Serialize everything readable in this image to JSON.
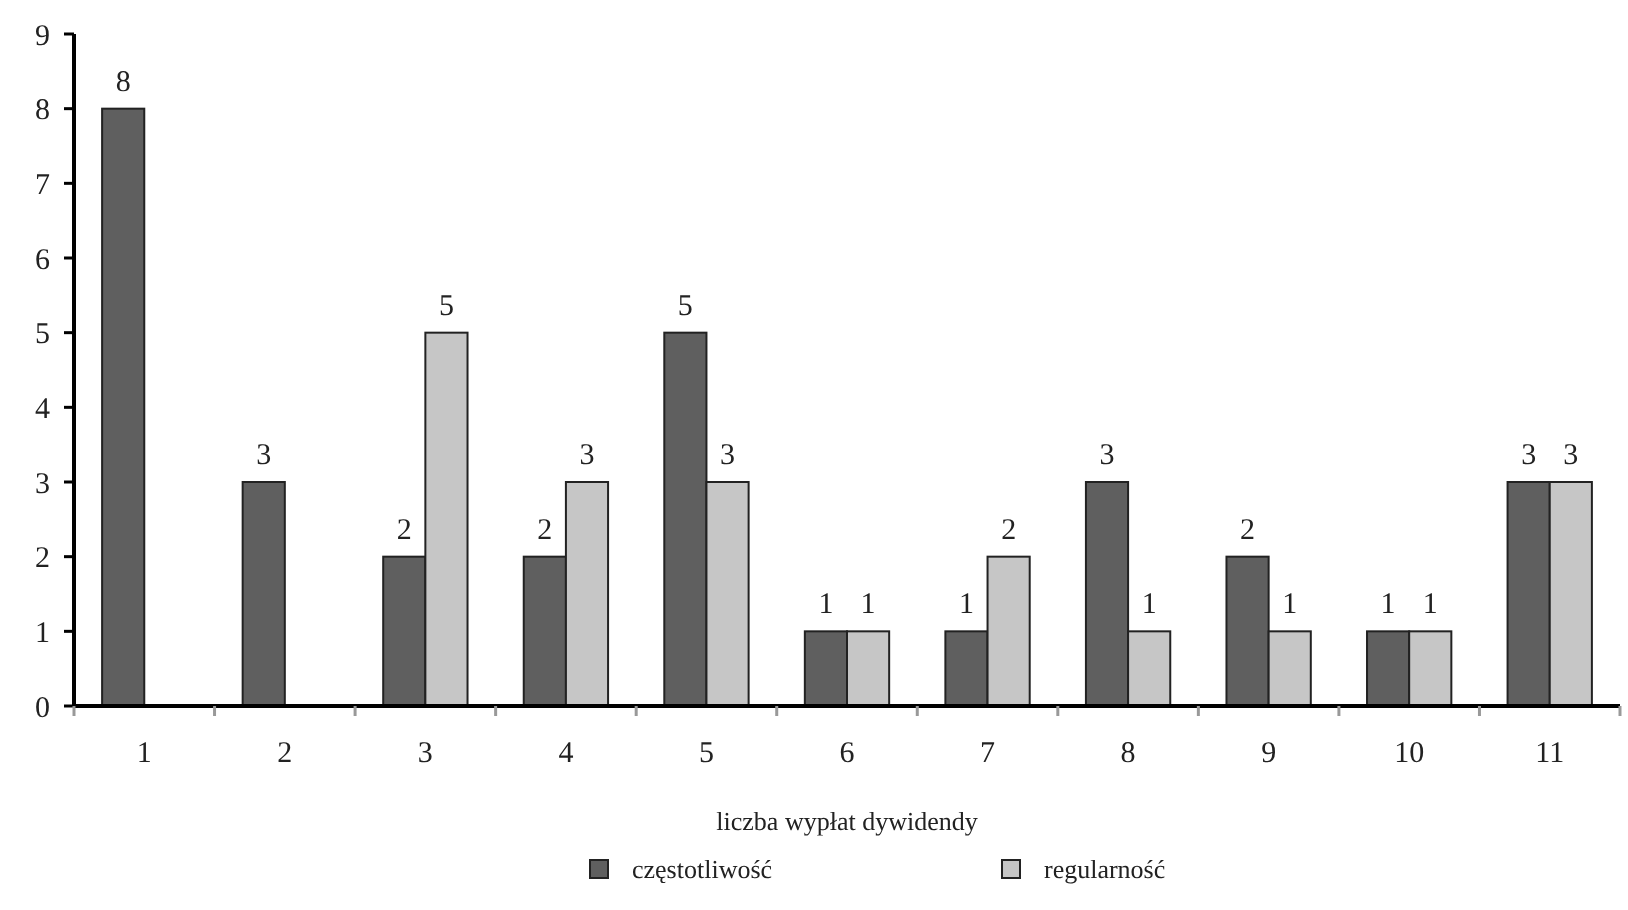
{
  "chart_data": {
    "type": "bar",
    "xlabel": "liczba wypłat dywidendy",
    "categories": [
      "1",
      "2",
      "3",
      "4",
      "5",
      "6",
      "7",
      "8",
      "9",
      "10",
      "11"
    ],
    "series": [
      {
        "name": "częstotliwość",
        "color": "#5f5f5f",
        "values": [
          8,
          3,
          2,
          2,
          5,
          1,
          1,
          3,
          2,
          1,
          3
        ],
        "value_labels": [
          "8",
          "3",
          "2",
          "2",
          "5",
          "1",
          "1",
          "3",
          "2",
          "1",
          "3"
        ]
      },
      {
        "name": "regularność",
        "color": "#c6c6c6",
        "values": [
          0,
          0,
          5,
          3,
          3,
          1,
          2,
          1,
          1,
          1,
          3
        ],
        "value_labels": [
          null,
          null,
          "5",
          "3",
          "3",
          "1",
          "2",
          "1",
          "1",
          "1",
          "3"
        ]
      }
    ],
    "ylim": [
      0,
      9
    ],
    "yticks": [
      0,
      1,
      2,
      3,
      4,
      5,
      6,
      7,
      8,
      9
    ],
    "grid": false,
    "legend": "bottom"
  }
}
